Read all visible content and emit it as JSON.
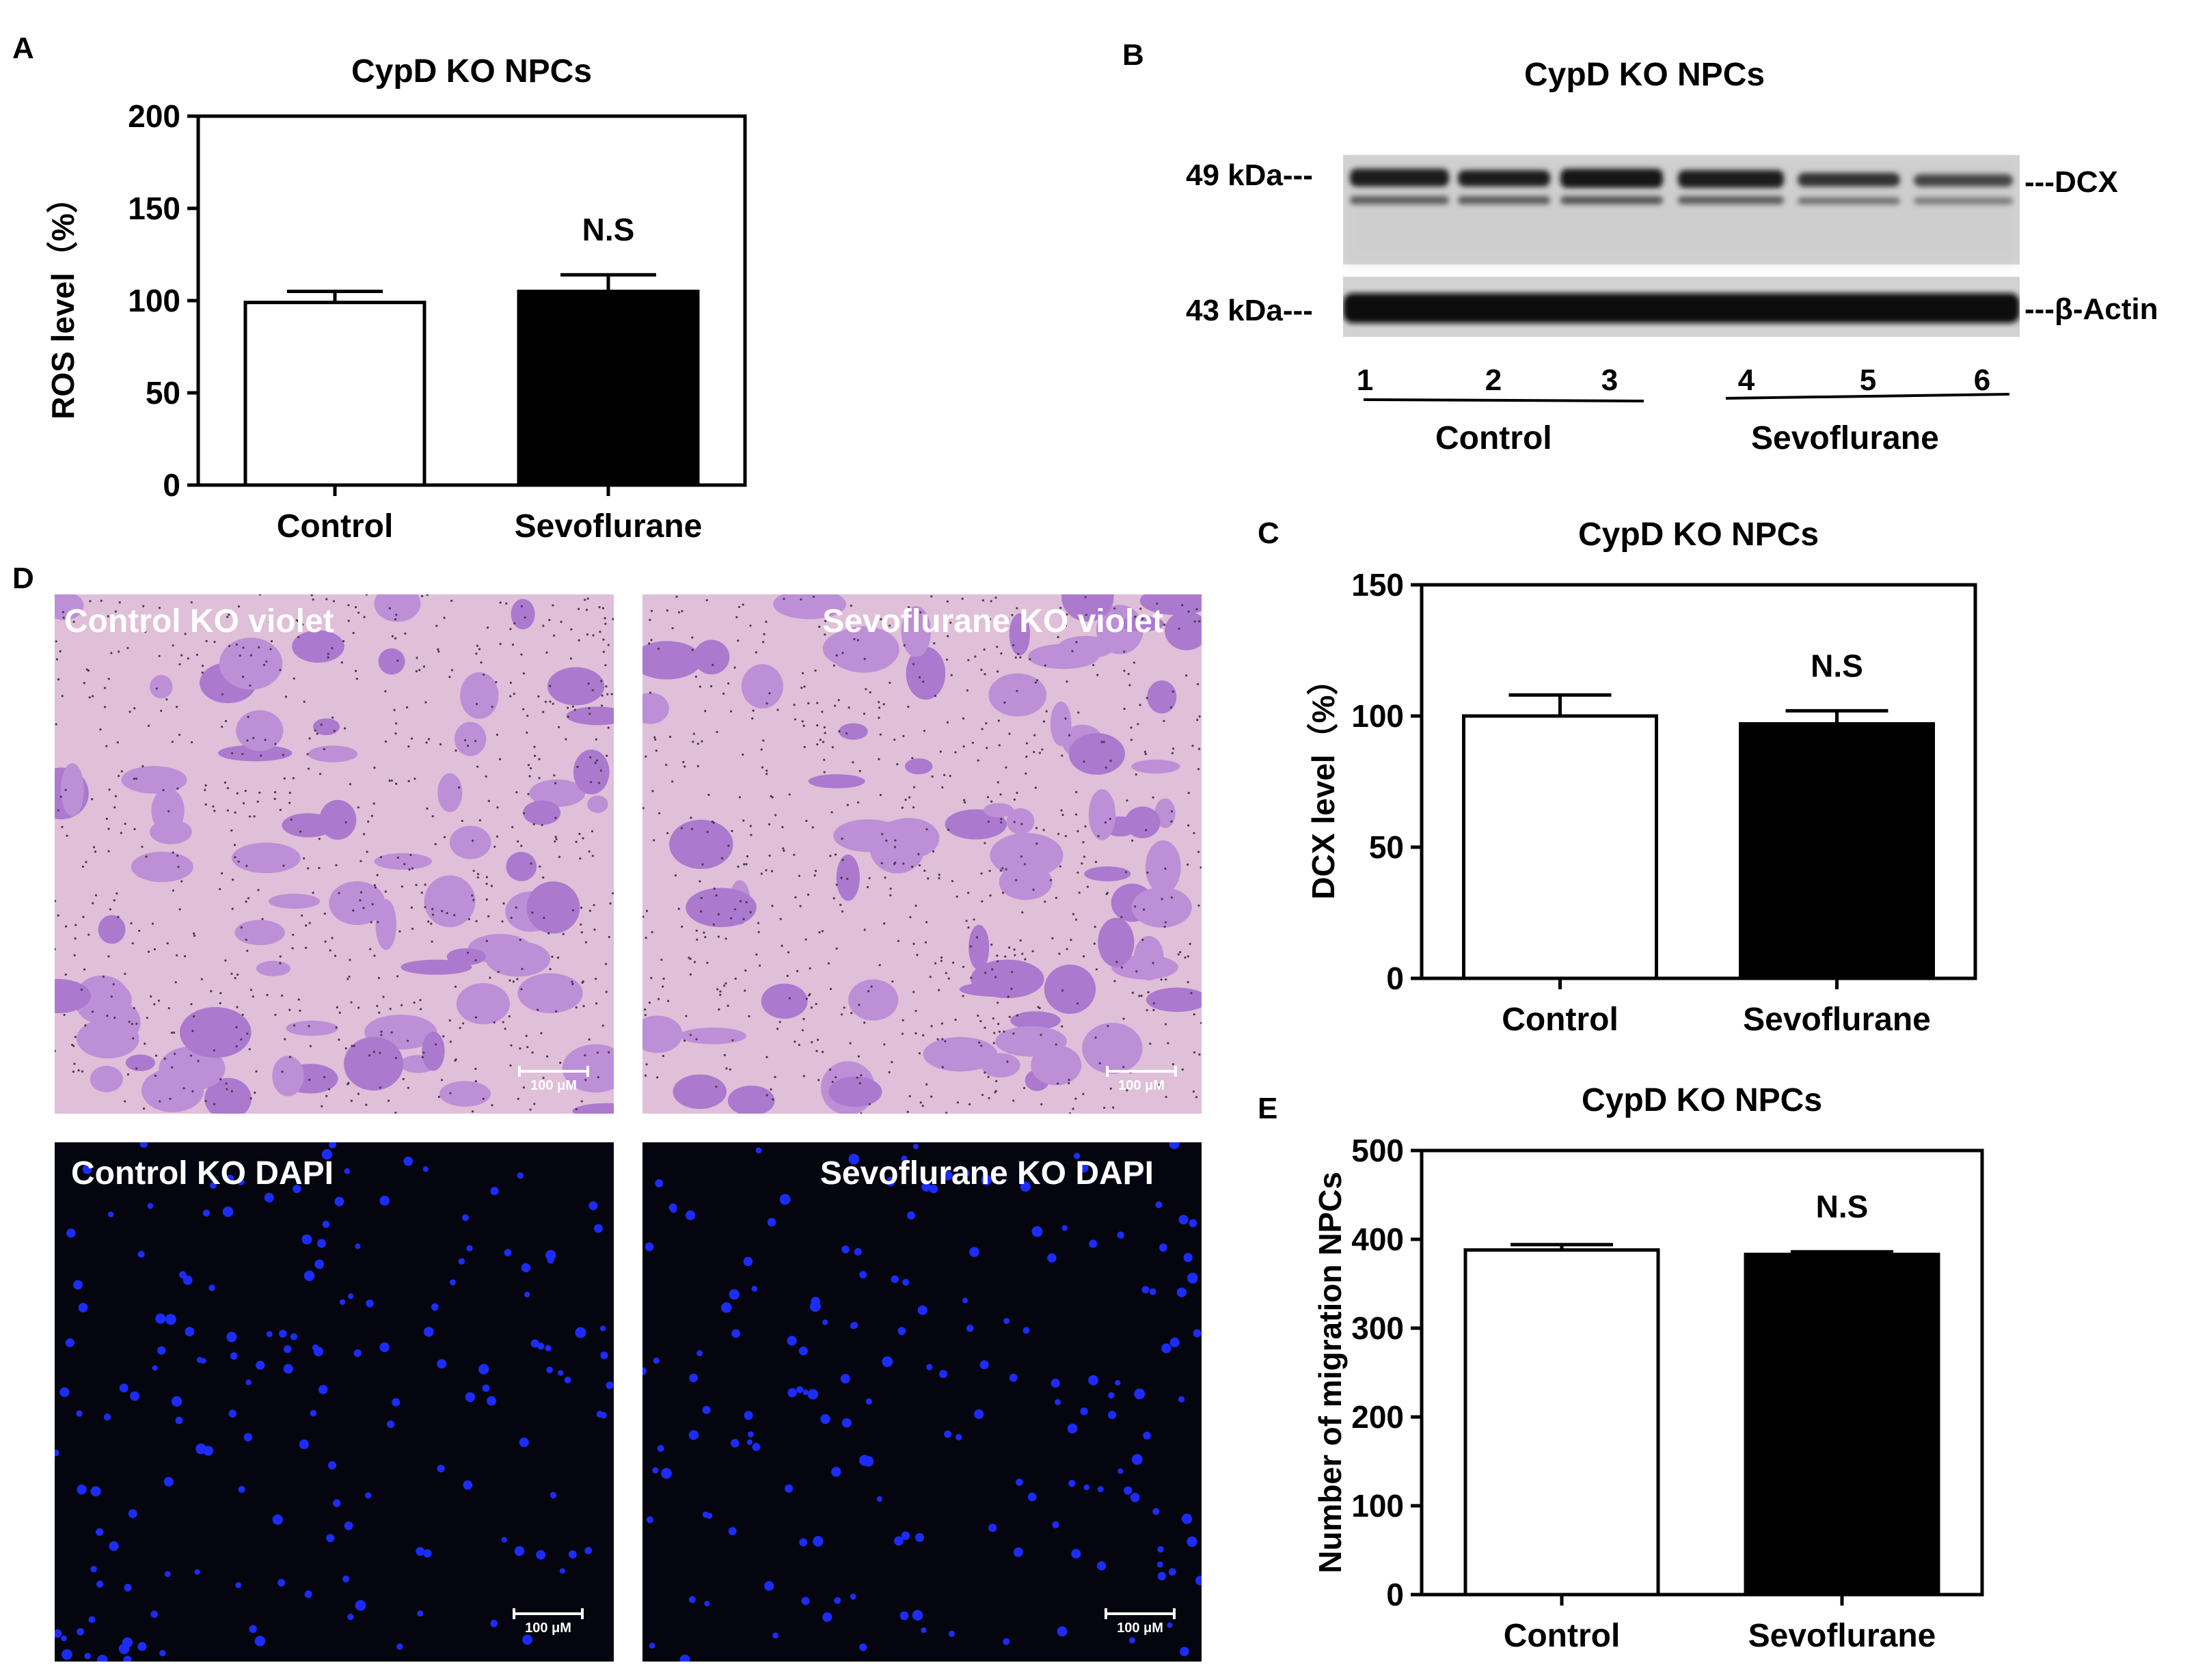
{
  "panel_letters": {
    "a": "A",
    "b": "B",
    "c": "C",
    "d": "D",
    "e": "E"
  },
  "chart_data": [
    {
      "id": "A",
      "type": "bar",
      "title": "CypD KO NPCs",
      "ylabel": "ROS level（%）",
      "categories": [
        "Control",
        "Sevoflurane"
      ],
      "values": [
        99,
        105
      ],
      "errors": [
        6,
        9
      ],
      "bar_colors": [
        "#ffffff",
        "#000000"
      ],
      "ylim": [
        0,
        200
      ],
      "yticks": [
        0,
        50,
        100,
        150,
        200
      ],
      "annotation": "N.S"
    },
    {
      "id": "C",
      "type": "bar",
      "title": "CypD KO NPCs",
      "ylabel": "DCX level（%）",
      "categories": [
        "Control",
        "Sevoflurane"
      ],
      "values": [
        100,
        97
      ],
      "errors": [
        8,
        5
      ],
      "bar_colors": [
        "#ffffff",
        "#000000"
      ],
      "ylim": [
        0,
        150
      ],
      "yticks": [
        0,
        50,
        100,
        150
      ],
      "annotation": "N.S"
    },
    {
      "id": "E",
      "type": "bar",
      "title": "CypD KO NPCs",
      "ylabel": "Number of migration NPCs",
      "categories": [
        "Control",
        "Sevoflurane"
      ],
      "values": [
        388,
        383
      ],
      "errors": [
        6,
        3
      ],
      "bar_colors": [
        "#ffffff",
        "#000000"
      ],
      "ylim": [
        0,
        500
      ],
      "yticks": [
        0,
        100,
        200,
        300,
        400,
        500
      ],
      "annotation": "N.S"
    }
  ],
  "western_blot": {
    "title": "CypD KO NPCs",
    "marker_top": "49 kDa---",
    "marker_bottom": "43 kDa---",
    "band_top": "---DCX",
    "band_bottom": "---β-Actin",
    "lanes": [
      "1",
      "2",
      "3",
      "4",
      "5",
      "6"
    ],
    "groups": [
      "Control",
      "Sevoflurane"
    ]
  },
  "micrographs": [
    {
      "label": "Control KO violet",
      "scale": "100 μM"
    },
    {
      "label": "Sevoflurane KO violet",
      "scale": "100 μM"
    },
    {
      "label": "Control  KO DAPI",
      "scale": "100 μM"
    },
    {
      "label": "Sevoflurane KO DAPI",
      "scale": "100 μM"
    }
  ]
}
